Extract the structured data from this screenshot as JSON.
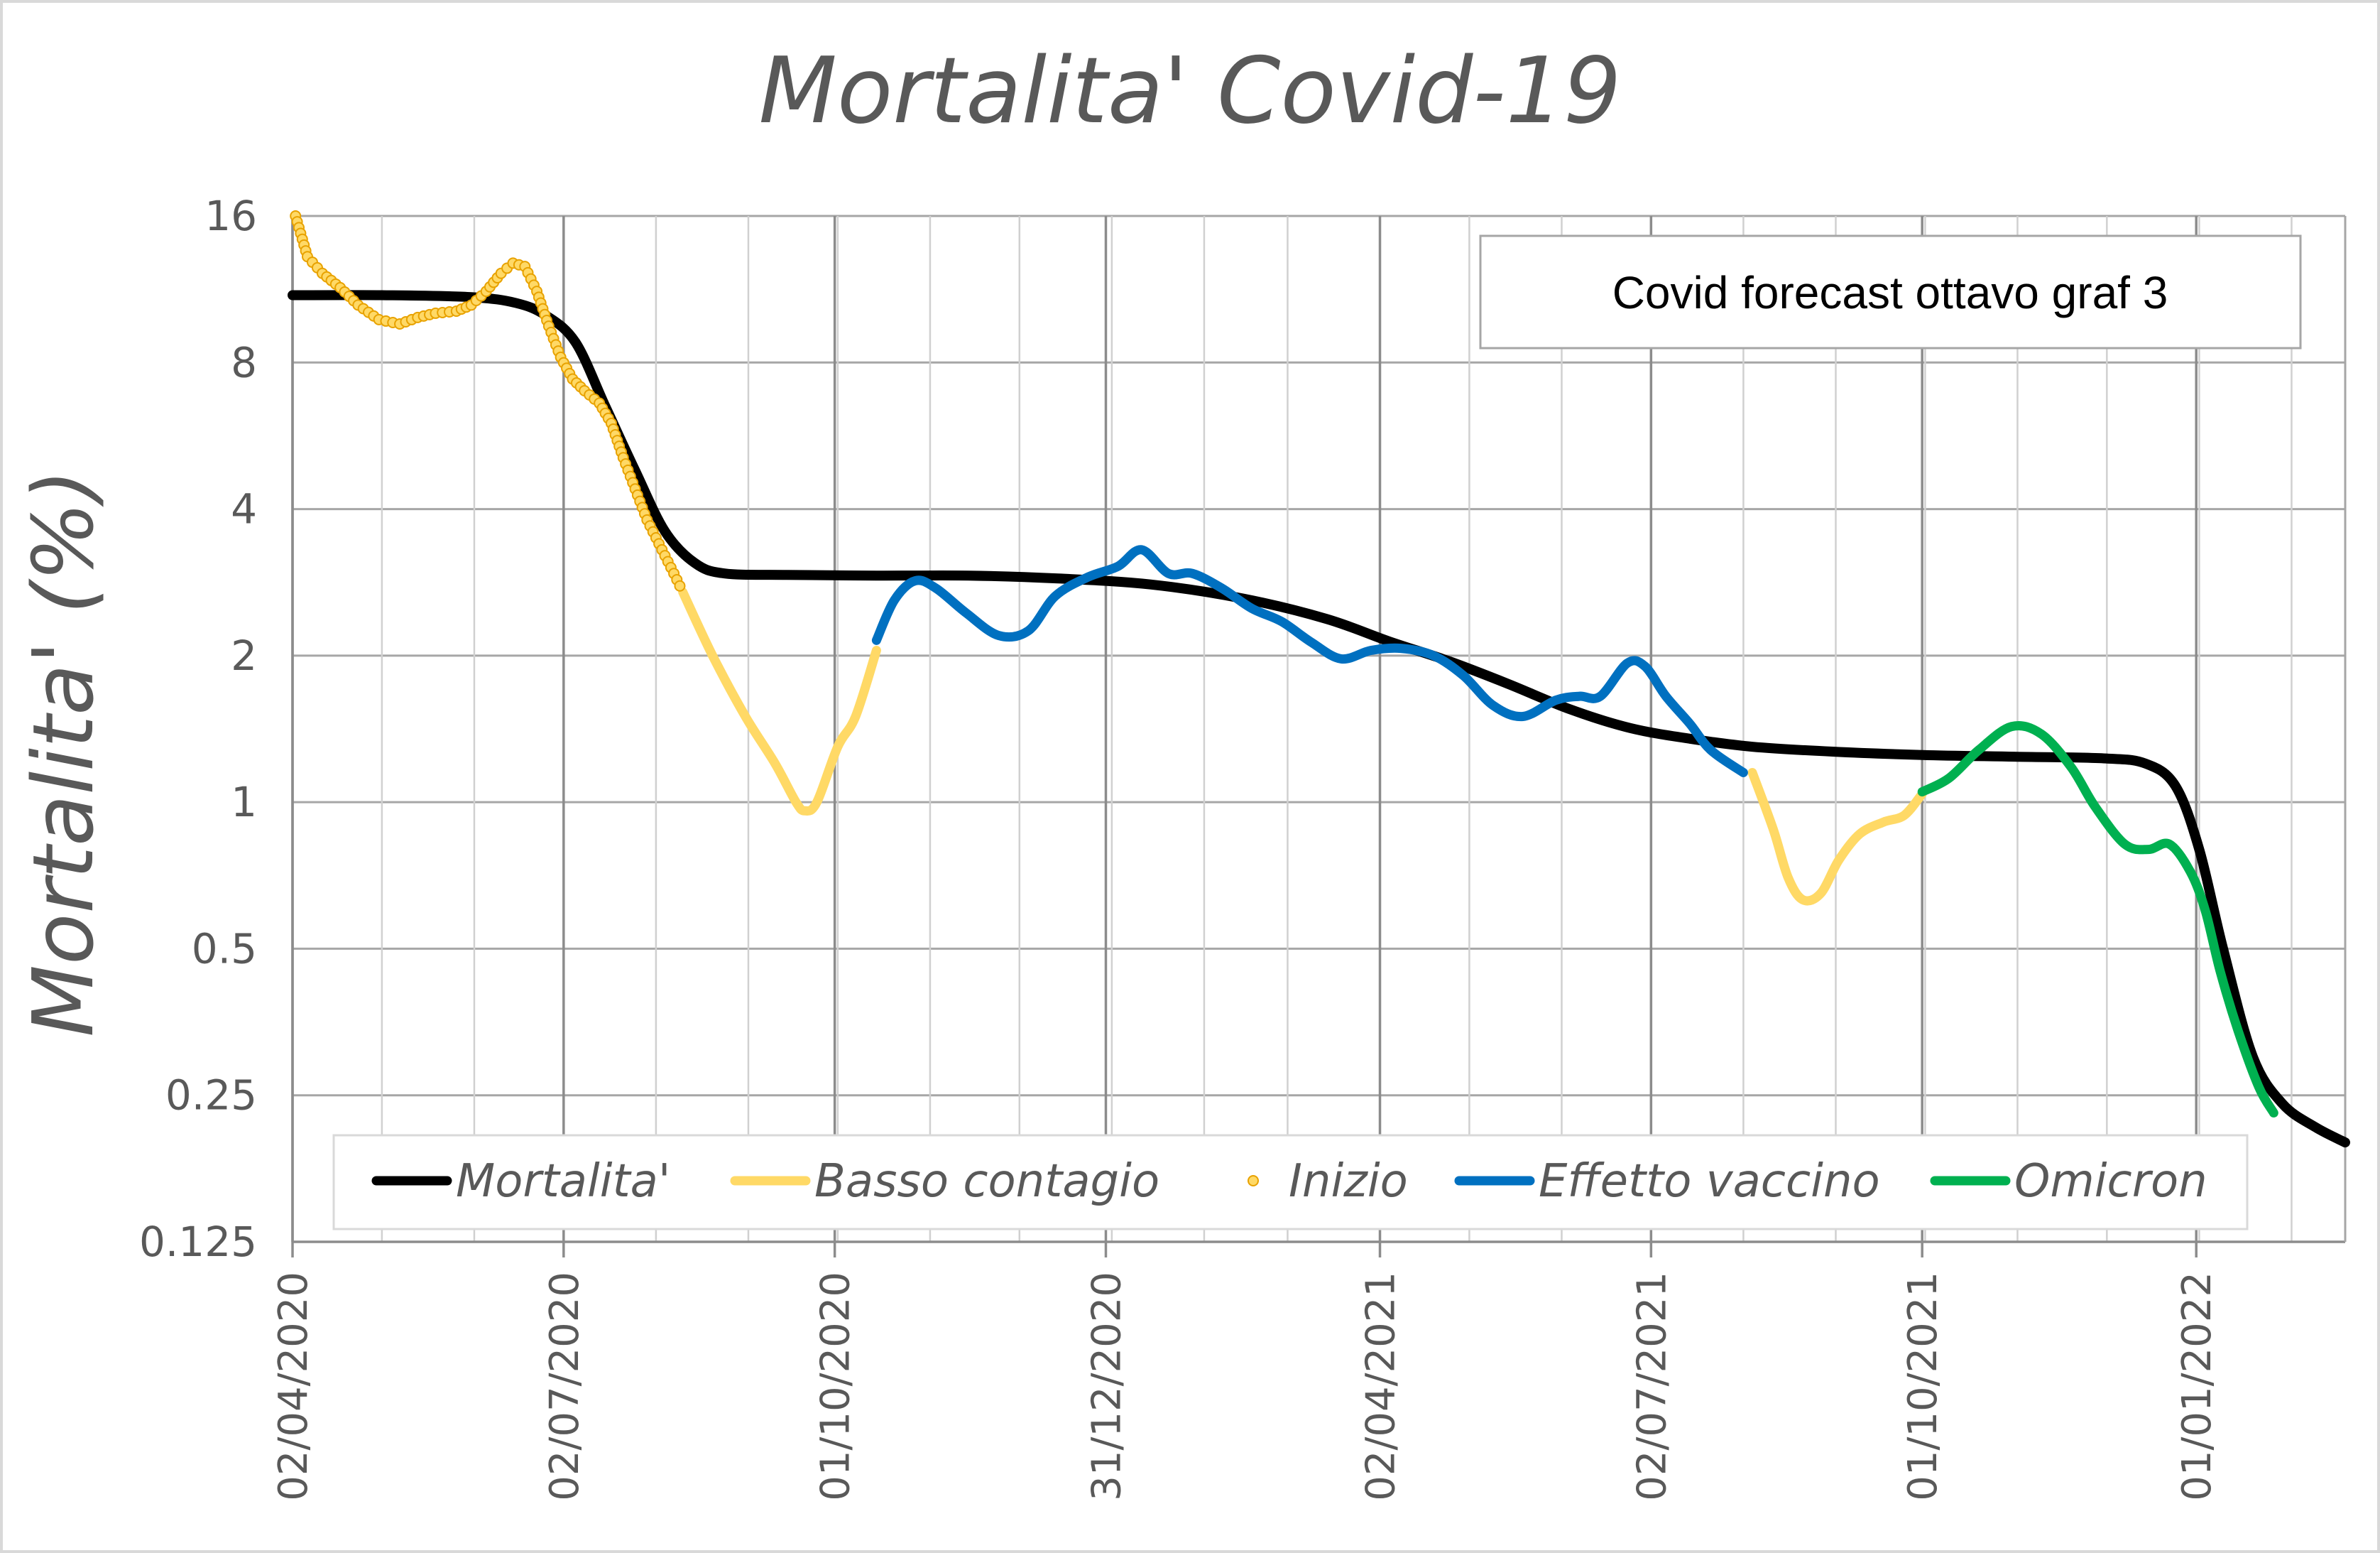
{
  "chart_data": {
    "type": "line",
    "title": "Mortalita' Covid-19",
    "xlabel": "",
    "ylabel": "Mortalita' (%)",
    "y_scale": "log2",
    "ylim": [
      0.125,
      16
    ],
    "y_ticks": [
      "16",
      "8",
      "4",
      "2",
      "1",
      "0.5",
      "0.25",
      "0.125"
    ],
    "xlim": [
      "2020-04-02",
      "2022-02-20"
    ],
    "x_ticks": [
      {
        "label": "02/04/2020",
        "date": "2020-04-02"
      },
      {
        "label": "02/07/2020",
        "date": "2020-07-02"
      },
      {
        "label": "01/10/2020",
        "date": "2020-10-01"
      },
      {
        "label": "31/12/2020",
        "date": "2020-12-31"
      },
      {
        "label": "02/04/2021",
        "date": "2021-04-02"
      },
      {
        "label": "02/07/2021",
        "date": "2021-07-02"
      },
      {
        "label": "01/10/2021",
        "date": "2021-10-01"
      },
      {
        "label": "01/01/2022",
        "date": "2022-01-01"
      }
    ],
    "grid": true,
    "annotation": "Covid forecast ottavo graf 3",
    "legend_position": "bottom",
    "series": [
      {
        "name": "Mortalita'",
        "color": "#000000",
        "style": "line",
        "points": [
          [
            "2020-04-02",
            11.0
          ],
          [
            "2020-05-02",
            11.0
          ],
          [
            "2020-06-01",
            10.9
          ],
          [
            "2020-06-16",
            10.6
          ],
          [
            "2020-06-26",
            10.0
          ],
          [
            "2020-07-06",
            8.8
          ],
          [
            "2020-07-16",
            6.5
          ],
          [
            "2020-07-26",
            4.8
          ],
          [
            "2020-08-05",
            3.6
          ],
          [
            "2020-08-15",
            3.1
          ],
          [
            "2020-08-25",
            2.95
          ],
          [
            "2020-09-15",
            2.93
          ],
          [
            "2020-10-15",
            2.92
          ],
          [
            "2020-11-15",
            2.92
          ],
          [
            "2020-12-15",
            2.88
          ],
          [
            "2021-01-15",
            2.8
          ],
          [
            "2021-02-15",
            2.62
          ],
          [
            "2021-03-15",
            2.38
          ],
          [
            "2021-04-05",
            2.14
          ],
          [
            "2021-04-25",
            1.95
          ],
          [
            "2021-05-15",
            1.75
          ],
          [
            "2021-06-05",
            1.55
          ],
          [
            "2021-06-25",
            1.42
          ],
          [
            "2021-07-15",
            1.35
          ],
          [
            "2021-08-05",
            1.3
          ],
          [
            "2021-09-01",
            1.27
          ],
          [
            "2021-10-01",
            1.25
          ],
          [
            "2021-11-01",
            1.24
          ],
          [
            "2021-12-01",
            1.23
          ],
          [
            "2021-12-15",
            1.2
          ],
          [
            "2021-12-25",
            1.08
          ],
          [
            "2022-01-02",
            0.8
          ],
          [
            "2022-01-10",
            0.5
          ],
          [
            "2022-01-20",
            0.3
          ],
          [
            "2022-01-30",
            0.24
          ],
          [
            "2022-02-10",
            0.215
          ],
          [
            "2022-02-20",
            0.2
          ]
        ]
      },
      {
        "name": "Basso contagio",
        "color": "#FFD966",
        "style": "line",
        "segments": [
          [
            [
              "2020-08-11",
              2.7
            ],
            [
              "2020-08-21",
              2.0
            ],
            [
              "2020-09-01",
              1.5
            ],
            [
              "2020-09-11",
              1.2
            ],
            [
              "2020-09-18",
              1.0
            ],
            [
              "2020-09-21",
              0.96
            ],
            [
              "2020-09-25",
              1.0
            ],
            [
              "2020-10-02",
              1.3
            ],
            [
              "2020-10-08",
              1.5
            ],
            [
              "2020-10-15",
              2.05
            ]
          ],
          [
            [
              "2021-08-05",
              1.15
            ],
            [
              "2021-08-12",
              0.88
            ],
            [
              "2021-08-17",
              0.7
            ],
            [
              "2021-08-22",
              0.63
            ],
            [
              "2021-08-28",
              0.65
            ],
            [
              "2021-09-03",
              0.76
            ],
            [
              "2021-09-10",
              0.86
            ],
            [
              "2021-09-18",
              0.91
            ],
            [
              "2021-09-25",
              0.94
            ],
            [
              "2021-10-01",
              1.04
            ]
          ]
        ]
      },
      {
        "name": "Inizio",
        "color": "#FFD966",
        "style": "markers",
        "points": [
          [
            "2020-04-03",
            16.0
          ],
          [
            "2020-04-07",
            13.2
          ],
          [
            "2020-04-12",
            12.2
          ],
          [
            "2020-04-18",
            11.4
          ],
          [
            "2020-04-24",
            10.5
          ],
          [
            "2020-05-01",
            9.8
          ],
          [
            "2020-05-08",
            9.6
          ],
          [
            "2020-05-14",
            9.9
          ],
          [
            "2020-05-20",
            10.1
          ],
          [
            "2020-05-27",
            10.2
          ],
          [
            "2020-06-01",
            10.5
          ],
          [
            "2020-06-06",
            11.2
          ],
          [
            "2020-06-11",
            12.2
          ],
          [
            "2020-06-15",
            12.8
          ],
          [
            "2020-06-19",
            12.6
          ],
          [
            "2020-06-23",
            11.2
          ],
          [
            "2020-06-27",
            9.5
          ],
          [
            "2020-07-01",
            8.2
          ],
          [
            "2020-07-05",
            7.4
          ],
          [
            "2020-07-09",
            7.0
          ],
          [
            "2020-07-14",
            6.6
          ],
          [
            "2020-07-18",
            6.0
          ],
          [
            "2020-07-22",
            5.1
          ],
          [
            "2020-07-26",
            4.4
          ],
          [
            "2020-07-30",
            3.8
          ],
          [
            "2020-08-04",
            3.3
          ],
          [
            "2020-08-08",
            2.95
          ],
          [
            "2020-08-11",
            2.7
          ]
        ]
      },
      {
        "name": "Effetto vaccino",
        "color": "#0070C0",
        "style": "line",
        "points": [
          [
            "2020-10-15",
            2.15
          ],
          [
            "2020-10-21",
            2.6
          ],
          [
            "2020-10-28",
            2.85
          ],
          [
            "2020-11-04",
            2.75
          ],
          [
            "2020-11-14",
            2.45
          ],
          [
            "2020-11-25",
            2.2
          ],
          [
            "2020-12-05",
            2.25
          ],
          [
            "2020-12-14",
            2.65
          ],
          [
            "2020-12-25",
            2.9
          ],
          [
            "2021-01-04",
            3.05
          ],
          [
            "2021-01-12",
            3.3
          ],
          [
            "2021-01-21",
            2.95
          ],
          [
            "2021-01-29",
            2.95
          ],
          [
            "2021-02-08",
            2.75
          ],
          [
            "2021-02-18",
            2.5
          ],
          [
            "2021-02-28",
            2.35
          ],
          [
            "2021-03-10",
            2.13
          ],
          [
            "2021-03-20",
            1.97
          ],
          [
            "2021-03-30",
            2.05
          ],
          [
            "2021-04-09",
            2.07
          ],
          [
            "2021-04-20",
            2.0
          ],
          [
            "2021-04-30",
            1.82
          ],
          [
            "2021-05-10",
            1.58
          ],
          [
            "2021-05-20",
            1.5
          ],
          [
            "2021-05-31",
            1.62
          ],
          [
            "2021-06-08",
            1.65
          ],
          [
            "2021-06-15",
            1.65
          ],
          [
            "2021-06-24",
            1.93
          ],
          [
            "2021-06-30",
            1.9
          ],
          [
            "2021-07-07",
            1.65
          ],
          [
            "2021-07-15",
            1.45
          ],
          [
            "2021-07-22",
            1.28
          ],
          [
            "2021-08-02",
            1.15
          ]
        ]
      },
      {
        "name": "Omicron",
        "color": "#00B050",
        "style": "line",
        "points": [
          [
            "2021-10-01",
            1.05
          ],
          [
            "2021-10-10",
            1.12
          ],
          [
            "2021-10-20",
            1.28
          ],
          [
            "2021-10-31",
            1.43
          ],
          [
            "2021-11-10",
            1.38
          ],
          [
            "2021-11-20",
            1.18
          ],
          [
            "2021-11-28",
            0.98
          ],
          [
            "2021-12-08",
            0.82
          ],
          [
            "2021-12-16",
            0.8
          ],
          [
            "2021-12-23",
            0.82
          ],
          [
            "2021-12-30",
            0.72
          ],
          [
            "2022-01-04",
            0.6
          ],
          [
            "2022-01-09",
            0.45
          ],
          [
            "2022-01-15",
            0.34
          ],
          [
            "2022-01-22",
            0.26
          ],
          [
            "2022-01-27",
            0.23
          ]
        ]
      }
    ],
    "legend": [
      {
        "label": "Mortalita'",
        "color": "#000000",
        "style": "line"
      },
      {
        "label": "Basso contagio",
        "color": "#FFD966",
        "style": "line"
      },
      {
        "label": "Inizio",
        "color": "#FFD966",
        "style": "marker"
      },
      {
        "label": "Effetto vaccino",
        "color": "#0070C0",
        "style": "line"
      },
      {
        "label": "Omicron",
        "color": "#00B050",
        "style": "line"
      }
    ]
  }
}
